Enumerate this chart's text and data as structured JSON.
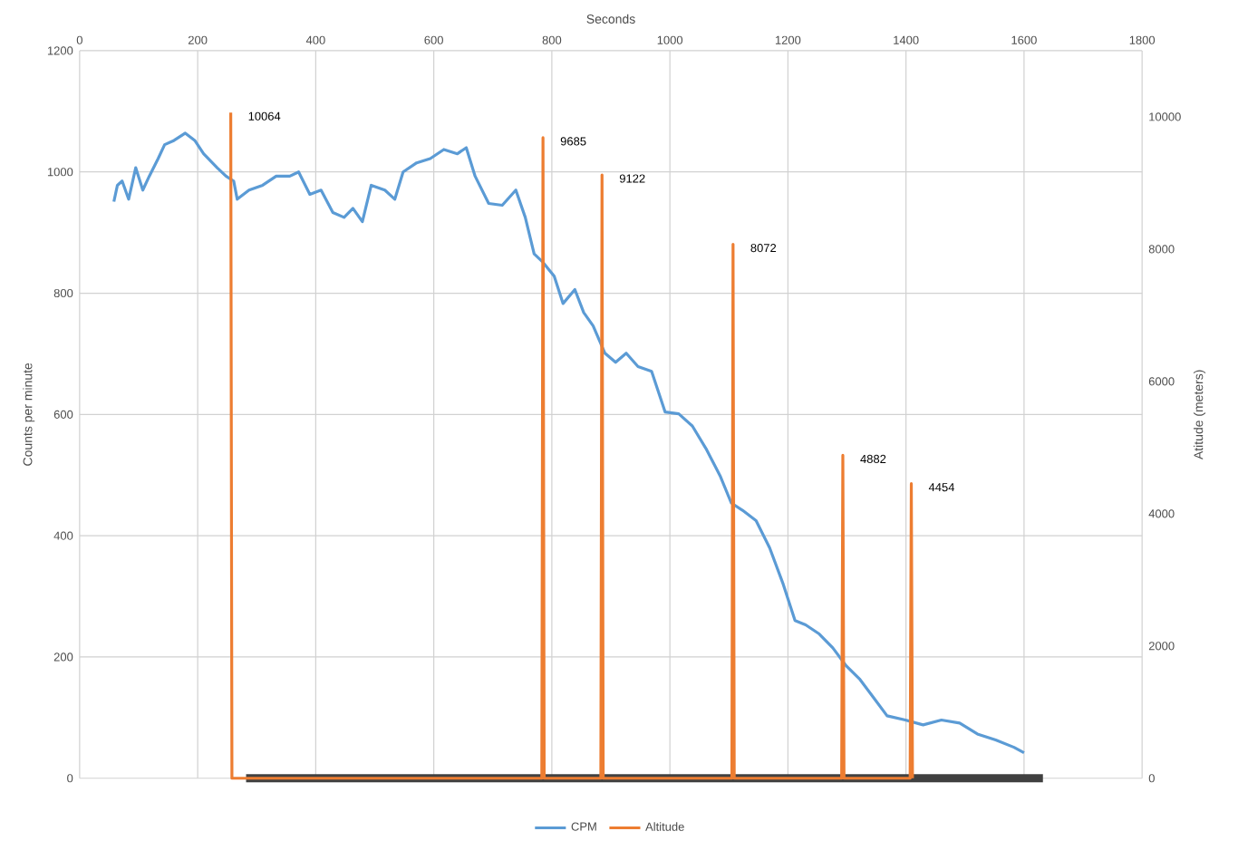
{
  "chart_data": {
    "type": "line",
    "xlabel": "Seconds",
    "ylabel": "Counts  per minute",
    "y2label": "Atitude (meters)",
    "xlim": [
      0,
      1800
    ],
    "xticks": [
      0,
      200,
      400,
      600,
      800,
      1000,
      1200,
      1400,
      1600,
      1800
    ],
    "ylim": [
      0,
      1200
    ],
    "yticks": [
      0,
      200,
      400,
      600,
      800,
      1000,
      1200
    ],
    "y2lim": [
      0,
      11000
    ],
    "y2ticks": [
      0,
      2000,
      4000,
      6000,
      8000,
      10000
    ],
    "grid": true,
    "legend": "bottom",
    "marker": "none",
    "line_style": "solid",
    "series": [
      {
        "name": "CPM",
        "color": "#5b9bd5",
        "x": [
          58,
          64,
          72,
          83,
          95,
          107,
          118,
          133,
          144,
          160,
          179,
          195,
          210,
          233,
          248,
          261,
          267,
          287,
          310,
          333,
          356,
          371,
          390,
          409,
          429,
          448,
          463,
          479,
          494,
          517,
          534,
          548,
          571,
          594,
          617,
          640,
          655,
          670,
          693,
          716,
          739,
          755,
          770,
          785,
          804,
          819,
          839,
          854,
          870,
          890,
          908,
          926,
          946,
          969,
          992,
          1015,
          1038,
          1061,
          1085,
          1104,
          1123,
          1146,
          1169,
          1192,
          1212,
          1230,
          1253,
          1276,
          1299,
          1322,
          1345,
          1368,
          1399,
          1429,
          1460,
          1491,
          1521,
          1552,
          1583,
          1600
        ],
        "values": [
          951,
          978,
          985,
          955,
          1007,
          970,
          993,
          1022,
          1045,
          1052,
          1064,
          1052,
          1030,
          1007,
          993,
          985,
          955,
          970,
          978,
          993,
          993,
          1000,
          963,
          970,
          933,
          925,
          940,
          918,
          978,
          970,
          955,
          1000,
          1015,
          1022,
          1037,
          1030,
          1040,
          993,
          948,
          945,
          970,
          925,
          865,
          851,
          828,
          783,
          806,
          768,
          746,
          701,
          686,
          701,
          679,
          671,
          604,
          601,
          581,
          544,
          499,
          454,
          442,
          425,
          380,
          320,
          260,
          253,
          238,
          215,
          185,
          163,
          133,
          103,
          96,
          88,
          96,
          91,
          73,
          63,
          51,
          42
        ]
      },
      {
        "name": "Altitude",
        "color": "#ed7d31",
        "axis": "y2",
        "x": [
          256,
          258,
          783,
          785,
          787,
          883,
          885,
          887,
          1105,
          1107,
          1109,
          1291,
          1293,
          1295,
          1407,
          1409,
          1411
        ],
        "values": [
          10064,
          0,
          0,
          9685,
          0,
          0,
          9122,
          0,
          0,
          8072,
          0,
          0,
          4882,
          0,
          0,
          4454,
          0
        ],
        "value_labels": [
          "10064",
          null,
          null,
          "9685",
          null,
          null,
          "9122",
          null,
          null,
          "8072",
          null,
          null,
          "4882",
          null,
          null,
          "4454",
          null
        ]
      },
      {
        "color": "#404040",
        "x": [
          282,
          1632
        ],
        "values": [
          0,
          0
        ]
      }
    ]
  }
}
